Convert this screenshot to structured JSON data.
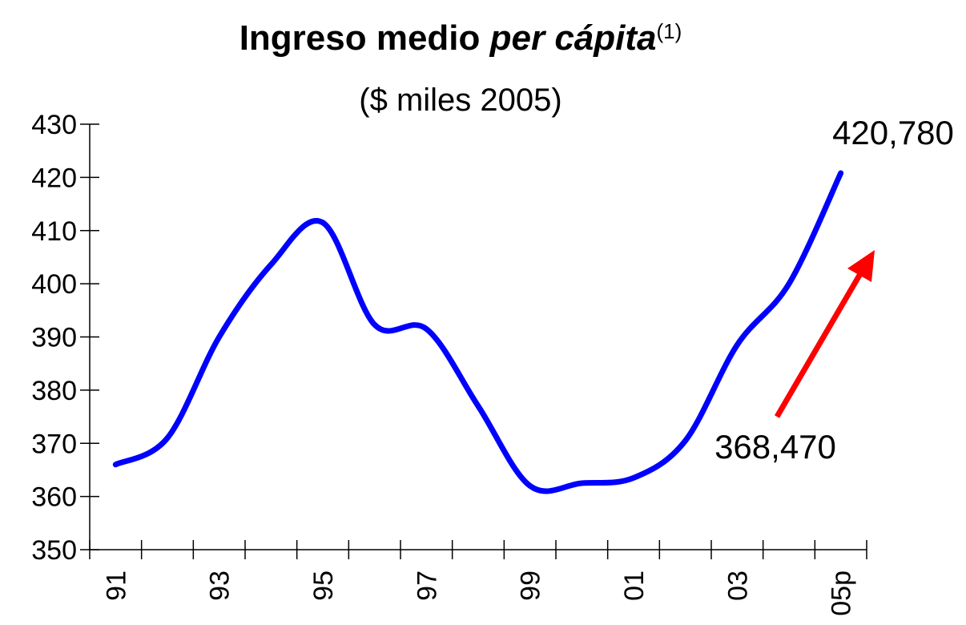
{
  "chart_data": {
    "type": "line",
    "title": "Ingreso medio",
    "title_italic": "per cápita",
    "title_note": "(1)",
    "subtitle": "($ miles 2005)",
    "categories": [
      "91",
      null,
      "93",
      null,
      "95",
      null,
      "97",
      null,
      "99",
      null,
      "01",
      null,
      "03",
      null,
      "05p"
    ],
    "series": [
      {
        "name": "Ingreso medio per cápita",
        "color": "#0000ff",
        "values": [
          366,
          371,
          390,
          403.6,
          411.5,
          392.3,
          391.5,
          377,
          362,
          362.5,
          363.5,
          370.5,
          388.5,
          400,
          420.8
        ]
      }
    ],
    "ylim": [
      350,
      430
    ],
    "yticks": [
      350,
      360,
      370,
      380,
      390,
      400,
      410,
      420,
      430
    ],
    "annotations": [
      "420,780",
      "368,470"
    ]
  }
}
